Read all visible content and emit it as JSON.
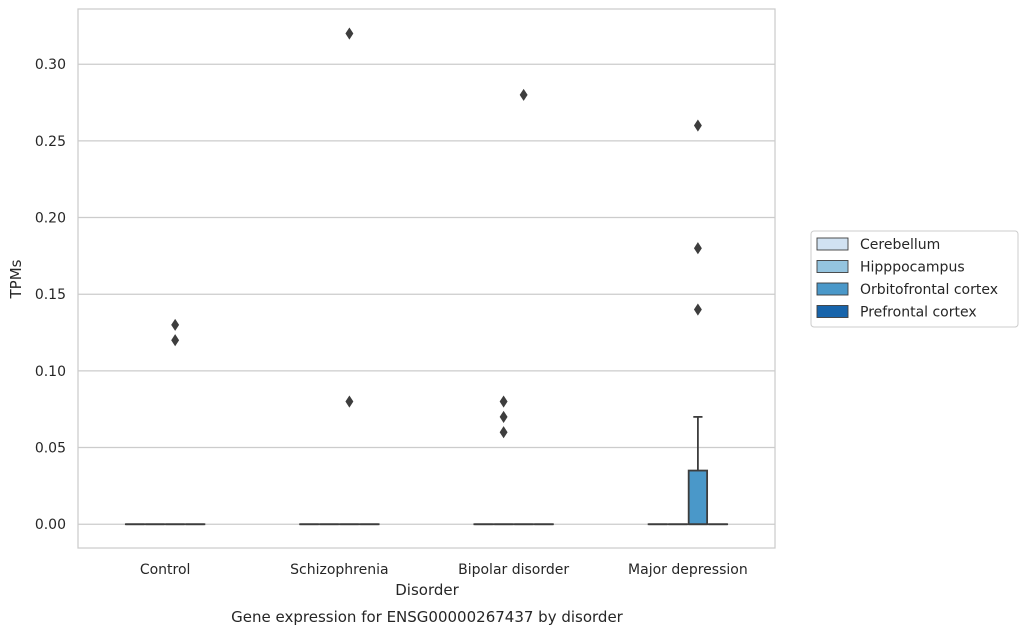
{
  "chart_data": {
    "type": "box",
    "title": "",
    "caption": "Gene expression for ENSG00000267437 by disorder",
    "xlabel": "Disorder",
    "ylabel": "TPMs",
    "ylim": [
      -0.0155,
      0.336
    ],
    "yticks": [
      0.0,
      0.05,
      0.1,
      0.15,
      0.2,
      0.25,
      0.3
    ],
    "ytick_labels": [
      "0.00",
      "0.05",
      "0.10",
      "0.15",
      "0.20",
      "0.25",
      "0.30"
    ],
    "grid": true,
    "legend_position": "right",
    "categories": [
      "Control",
      "Schizophrenia",
      "Bipolar disorder",
      "Major depression"
    ],
    "series": [
      {
        "name": "Cerebellum",
        "color": "#d1e2f2"
      },
      {
        "name": "Hipppocampus",
        "color": "#94c4df"
      },
      {
        "name": "Orbitofrontal cortex",
        "color": "#4a98c9"
      },
      {
        "name": "Prefrontal cortex",
        "color": "#1764ab"
      }
    ],
    "boxes": [
      {
        "category": "Control",
        "series": "Cerebellum",
        "whisker_low": 0,
        "q1": 0,
        "median": 0,
        "q3": 0,
        "whisker_high": 0,
        "outliers": []
      },
      {
        "category": "Control",
        "series": "Hipppocampus",
        "whisker_low": 0,
        "q1": 0,
        "median": 0,
        "q3": 0,
        "whisker_high": 0,
        "outliers": []
      },
      {
        "category": "Control",
        "series": "Orbitofrontal cortex",
        "whisker_low": 0,
        "q1": 0,
        "median": 0,
        "q3": 0,
        "whisker_high": 0,
        "outliers": [
          0.13,
          0.12
        ]
      },
      {
        "category": "Control",
        "series": "Prefrontal cortex",
        "whisker_low": 0,
        "q1": 0,
        "median": 0,
        "q3": 0,
        "whisker_high": 0,
        "outliers": []
      },
      {
        "category": "Schizophrenia",
        "series": "Cerebellum",
        "whisker_low": 0,
        "q1": 0,
        "median": 0,
        "q3": 0,
        "whisker_high": 0,
        "outliers": []
      },
      {
        "category": "Schizophrenia",
        "series": "Hipppocampus",
        "whisker_low": 0,
        "q1": 0,
        "median": 0,
        "q3": 0,
        "whisker_high": 0,
        "outliers": []
      },
      {
        "category": "Schizophrenia",
        "series": "Orbitofrontal cortex",
        "whisker_low": 0,
        "q1": 0,
        "median": 0,
        "q3": 0,
        "whisker_high": 0,
        "outliers": [
          0.32,
          0.08
        ]
      },
      {
        "category": "Schizophrenia",
        "series": "Prefrontal cortex",
        "whisker_low": 0,
        "q1": 0,
        "median": 0,
        "q3": 0,
        "whisker_high": 0,
        "outliers": []
      },
      {
        "category": "Bipolar disorder",
        "series": "Cerebellum",
        "whisker_low": 0,
        "q1": 0,
        "median": 0,
        "q3": 0,
        "whisker_high": 0,
        "outliers": []
      },
      {
        "category": "Bipolar disorder",
        "series": "Hipppocampus",
        "whisker_low": 0,
        "q1": 0,
        "median": 0,
        "q3": 0,
        "whisker_high": 0,
        "outliers": [
          0.08,
          0.07,
          0.06
        ]
      },
      {
        "category": "Bipolar disorder",
        "series": "Orbitofrontal cortex",
        "whisker_low": 0,
        "q1": 0,
        "median": 0,
        "q3": 0,
        "whisker_high": 0,
        "outliers": [
          0.28
        ]
      },
      {
        "category": "Bipolar disorder",
        "series": "Prefrontal cortex",
        "whisker_low": 0,
        "q1": 0,
        "median": 0,
        "q3": 0,
        "whisker_high": 0,
        "outliers": []
      },
      {
        "category": "Major depression",
        "series": "Cerebellum",
        "whisker_low": 0,
        "q1": 0,
        "median": 0,
        "q3": 0,
        "whisker_high": 0,
        "outliers": []
      },
      {
        "category": "Major depression",
        "series": "Hipppocampus",
        "whisker_low": 0,
        "q1": 0,
        "median": 0,
        "q3": 0,
        "whisker_high": 0,
        "outliers": []
      },
      {
        "category": "Major depression",
        "series": "Orbitofrontal cortex",
        "whisker_low": 0,
        "q1": 0,
        "median": 0,
        "q3": 0.035,
        "whisker_high": 0.07,
        "outliers": [
          0.26,
          0.18,
          0.14
        ]
      },
      {
        "category": "Major depression",
        "series": "Prefrontal cortex",
        "whisker_low": 0,
        "q1": 0,
        "median": 0,
        "q3": 0,
        "whisker_high": 0,
        "outliers": []
      }
    ]
  }
}
